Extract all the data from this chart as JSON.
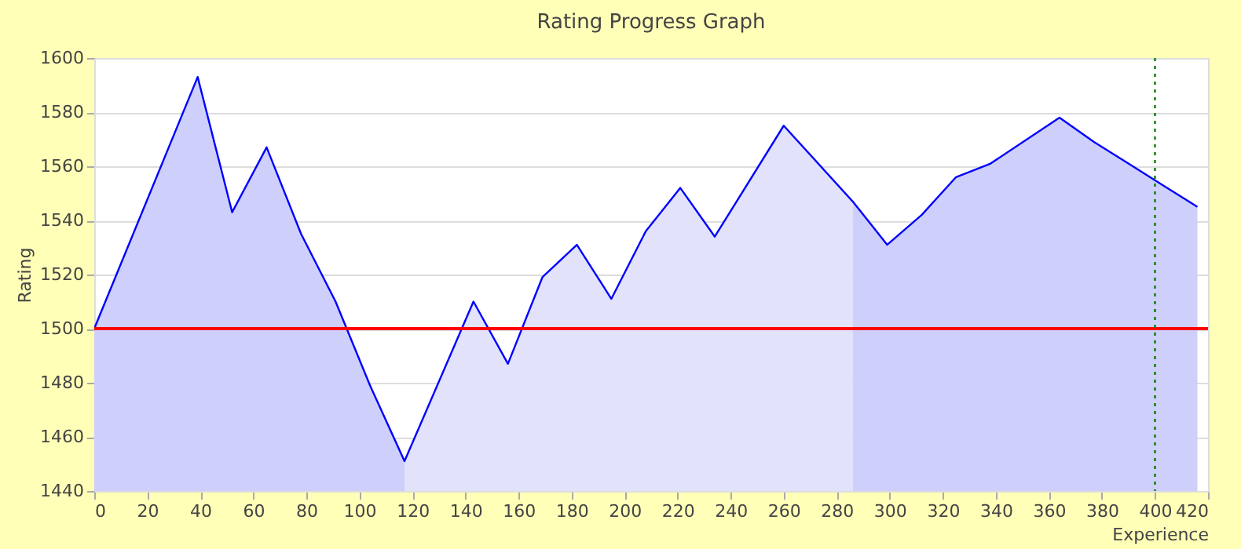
{
  "chart_data": {
    "type": "line",
    "title": "Rating Progress Graph",
    "xlabel": "Experience",
    "ylabel": "Rating",
    "xlim": [
      0,
      420
    ],
    "xticks": [
      0,
      20,
      40,
      60,
      80,
      100,
      120,
      140,
      160,
      180,
      200,
      220,
      240,
      260,
      280,
      300,
      320,
      340,
      360,
      380,
      400,
      420
    ],
    "ylim": [
      1440,
      1600
    ],
    "yticks": [
      1440,
      1460,
      1480,
      1500,
      1520,
      1540,
      1560,
      1580,
      1600
    ],
    "grid": "y",
    "marker": "none",
    "line_style": "solid",
    "series": [
      {
        "type": "area",
        "color": "#cfcffb",
        "x": [
          0,
          39,
          52,
          65,
          78,
          91,
          104,
          117
        ],
        "values": [
          1500,
          1593,
          1543,
          1567,
          1535,
          1510,
          1479,
          1451
        ]
      },
      {
        "type": "area",
        "color": "#e2e2fb",
        "x": [
          117,
          143,
          156,
          169,
          182,
          195,
          208,
          221,
          234,
          260,
          286
        ],
        "values": [
          1451,
          1510,
          1487,
          1519,
          1531,
          1511,
          1536,
          1552,
          1534,
          1575,
          1547
        ]
      },
      {
        "type": "area",
        "color": "#cfcffb",
        "x": [
          286,
          299,
          312,
          325,
          338,
          364,
          377,
          390,
          403,
          416
        ],
        "values": [
          1547,
          1531,
          1542,
          1556,
          1561,
          1578,
          1569,
          1561,
          1553,
          1545
        ]
      },
      {
        "color": "#0000ff",
        "x": [
          0,
          39,
          52,
          65,
          78,
          91,
          104,
          117,
          143,
          156,
          169,
          182,
          195,
          208,
          221,
          234,
          260,
          286,
          299,
          312,
          325,
          338,
          364,
          377,
          390,
          403,
          416
        ],
        "values": [
          1500,
          1593,
          1543,
          1567,
          1535,
          1510,
          1479,
          1451,
          1510,
          1487,
          1519,
          1531,
          1511,
          1536,
          1552,
          1534,
          1575,
          1547,
          1531,
          1542,
          1556,
          1561,
          1578,
          1569,
          1561,
          1553,
          1545
        ]
      }
    ],
    "ref_lines": [
      {
        "axis": "y",
        "value": 1500,
        "color": "#ff0000",
        "line_style": "solid"
      },
      {
        "axis": "x",
        "value": 400,
        "color": "#008000",
        "line_style": "dotted"
      }
    ]
  }
}
